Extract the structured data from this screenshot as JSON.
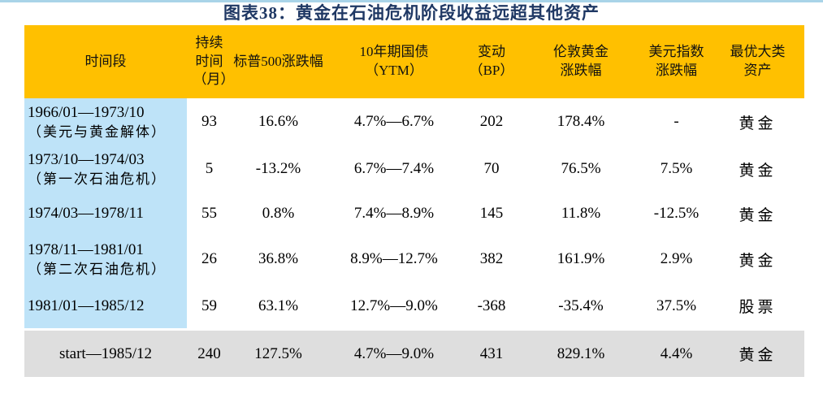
{
  "title": "图表38：黄金在石油危机阶段收益远超其他资产",
  "table": {
    "headers": [
      "时间段",
      "持续时间（月）",
      "标普500涨跌幅",
      "10年期国债（YTM）",
      "变动（BP）",
      "伦敦黄金涨跌幅",
      "美元指数涨跌幅",
      "最优大类资产"
    ],
    "rows": [
      {
        "period": "1966/01—1973/10",
        "note": "（美元与黄金解体）",
        "months": "93",
        "sp500_change": "16.6%",
        "treasury_ytm_range": "4.7%—6.7%",
        "bp_change": "202",
        "london_gold_change": "178.4%",
        "usd_index_change": "-",
        "best_asset": "黄金"
      },
      {
        "period": "1973/10—1974/03",
        "note": "（第一次石油危机）",
        "months": "5",
        "sp500_change": "-13.2%",
        "treasury_ytm_range": "6.7%—7.4%",
        "bp_change": "70",
        "london_gold_change": "76.5%",
        "usd_index_change": "7.5%",
        "best_asset": "黄金"
      },
      {
        "period": "1974/03—1978/11",
        "note": "",
        "months": "55",
        "sp500_change": "0.8%",
        "treasury_ytm_range": "7.4%—8.9%",
        "bp_change": "145",
        "london_gold_change": "11.8%",
        "usd_index_change": "-12.5%",
        "best_asset": "黄金"
      },
      {
        "period": "1978/11—1981/01",
        "note": "（第二次石油危机）",
        "months": "26",
        "sp500_change": "36.8%",
        "treasury_ytm_range": "8.9%—12.7%",
        "bp_change": "382",
        "london_gold_change": "161.9%",
        "usd_index_change": "2.9%",
        "best_asset": "黄金"
      },
      {
        "period": "1981/01—1985/12",
        "note": "",
        "months": "59",
        "sp500_change": "63.1%",
        "treasury_ytm_range": "12.7%—9.0%",
        "bp_change": "-368",
        "london_gold_change": "-35.4%",
        "usd_index_change": "37.5%",
        "best_asset": "股票"
      }
    ],
    "summary": {
      "period": "start—1985/12",
      "months": "240",
      "sp500_change": "127.5%",
      "treasury_ytm_range": "4.7%—9.0%",
      "bp_change": "431",
      "london_gold_change": "829.1%",
      "usd_index_change": "4.4%",
      "best_asset": "黄金"
    }
  },
  "colors": {
    "header_bg": "#ffc000",
    "period_column_bg": "#bee3f8",
    "summary_row_bg": "#dedede",
    "title_color": "#1f3864",
    "top_rule": "#a9d4e8",
    "text": "#000000"
  }
}
